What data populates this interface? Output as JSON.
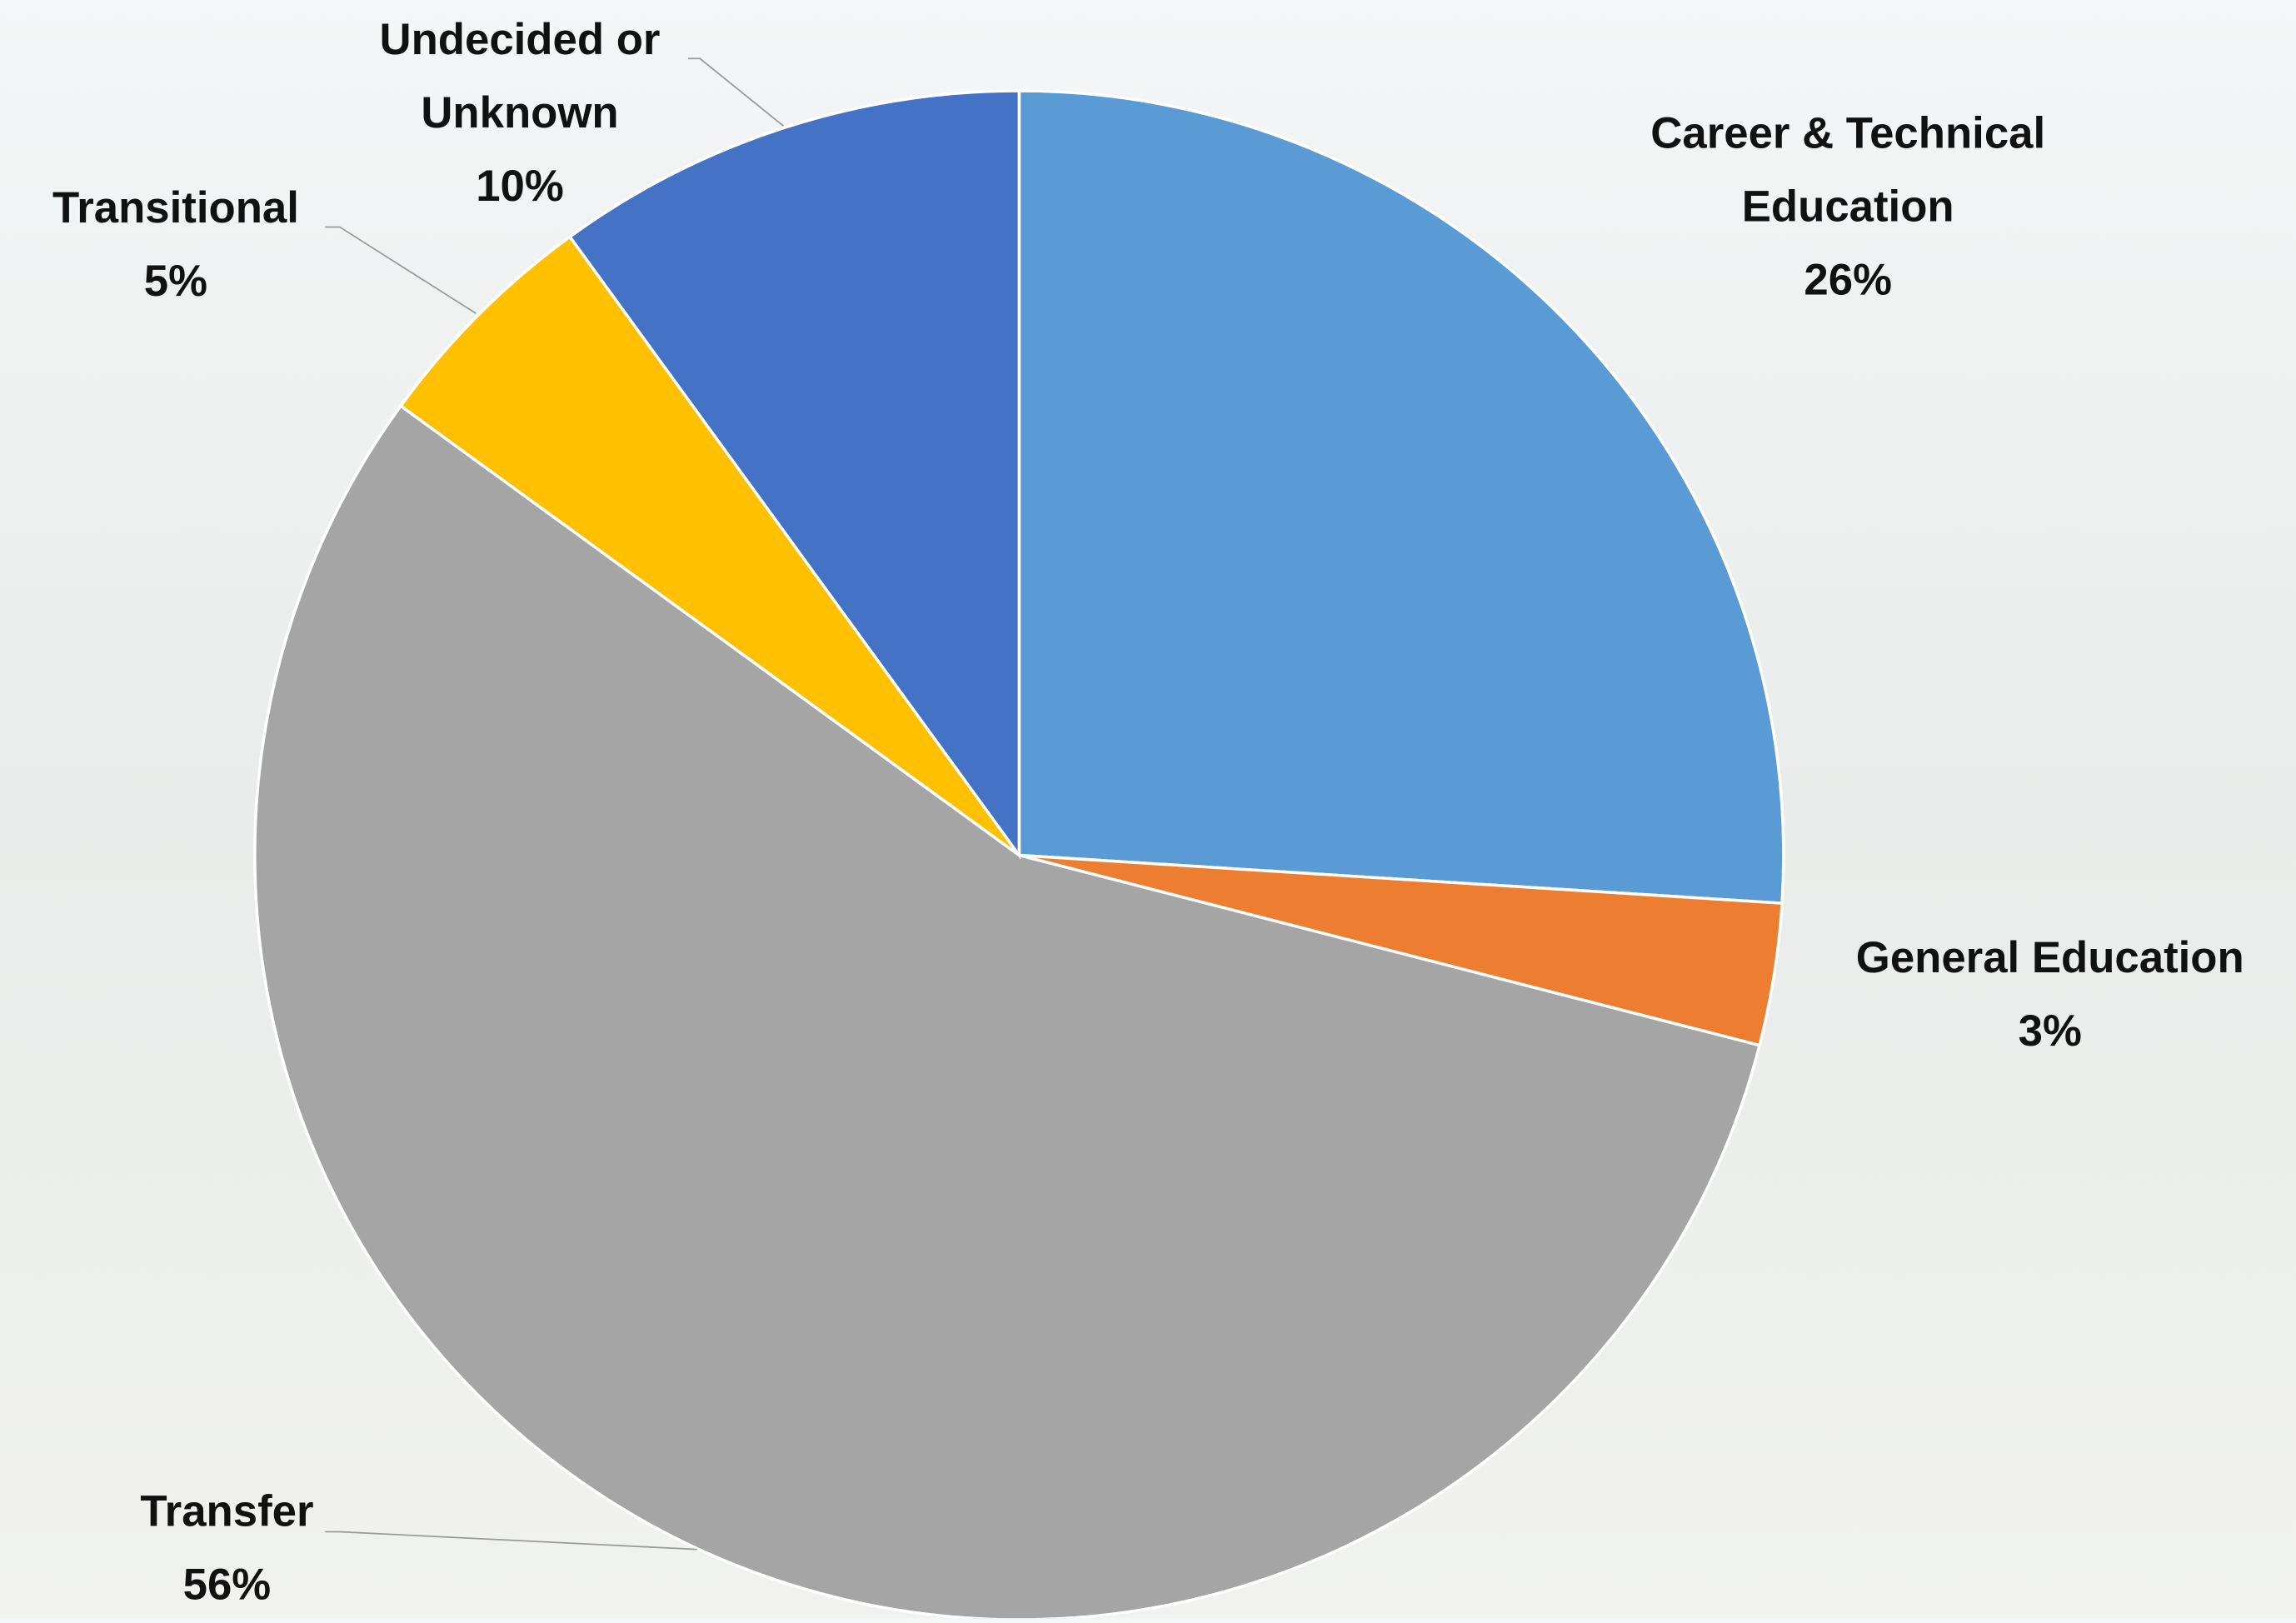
{
  "chart_data": {
    "type": "pie",
    "categories": [
      "Career & Technical Education",
      "General Education",
      "Transfer",
      "Transitional",
      "Undecided or Unknown"
    ],
    "values": [
      26,
      3,
      56,
      5,
      10
    ],
    "value_labels": [
      "26%",
      "3%",
      "56%",
      "5%",
      "10%"
    ],
    "colors": [
      "#5b9bd5",
      "#ed7d31",
      "#a5a5a5",
      "#ffc000",
      "#4472c4"
    ]
  }
}
